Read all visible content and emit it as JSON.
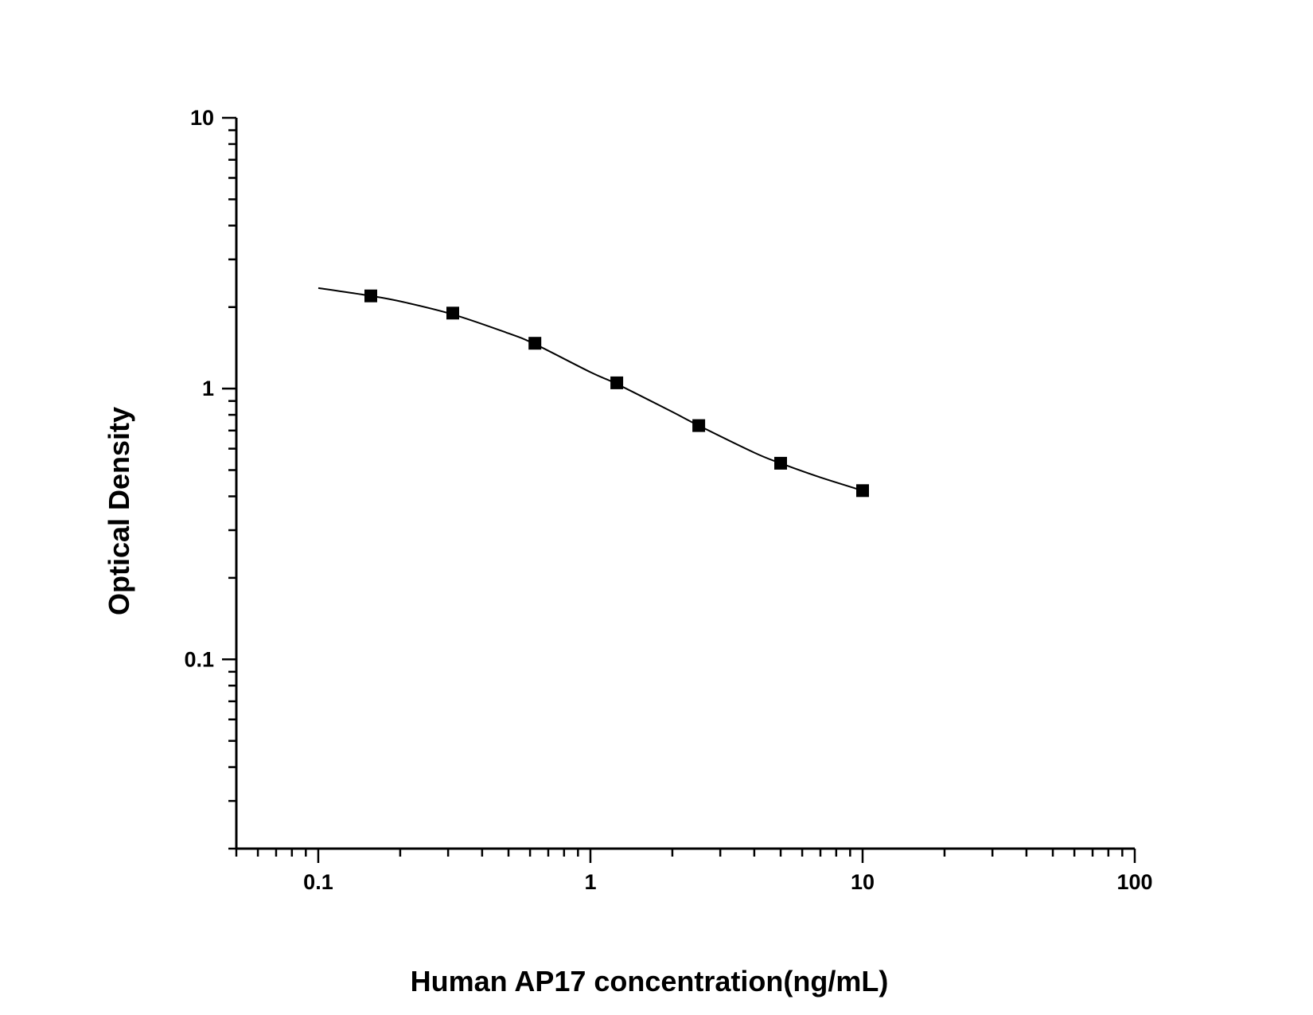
{
  "chart_data": {
    "type": "scatter",
    "title": "",
    "xlabel": "Human AP17 concentration(ng/mL)",
    "ylabel": "Optical Density",
    "x_scale": "log",
    "y_scale": "log",
    "xlim": [
      0.05,
      100
    ],
    "ylim": [
      0.02,
      10
    ],
    "x_ticks": [
      "0.1",
      "1",
      "10",
      "100"
    ],
    "y_ticks": [
      "0.1",
      "1",
      "10"
    ],
    "grid": false,
    "legend": "none",
    "marker": "square",
    "color": "#000000",
    "series": [
      {
        "x": [
          0.156,
          0.312,
          0.625,
          1.25,
          2.5,
          5,
          10
        ],
        "y": [
          2.2,
          1.9,
          1.47,
          1.05,
          0.73,
          0.53,
          0.42
        ]
      }
    ],
    "fit_curve": {
      "x": [
        0.1,
        0.156,
        0.2,
        0.312,
        0.5,
        0.625,
        1,
        1.25,
        2,
        2.5,
        4,
        5,
        7,
        10
      ],
      "y": [
        2.35,
        2.2,
        2.1,
        1.88,
        1.6,
        1.46,
        1.15,
        1.04,
        0.82,
        0.73,
        0.58,
        0.53,
        0.47,
        0.42
      ]
    }
  }
}
